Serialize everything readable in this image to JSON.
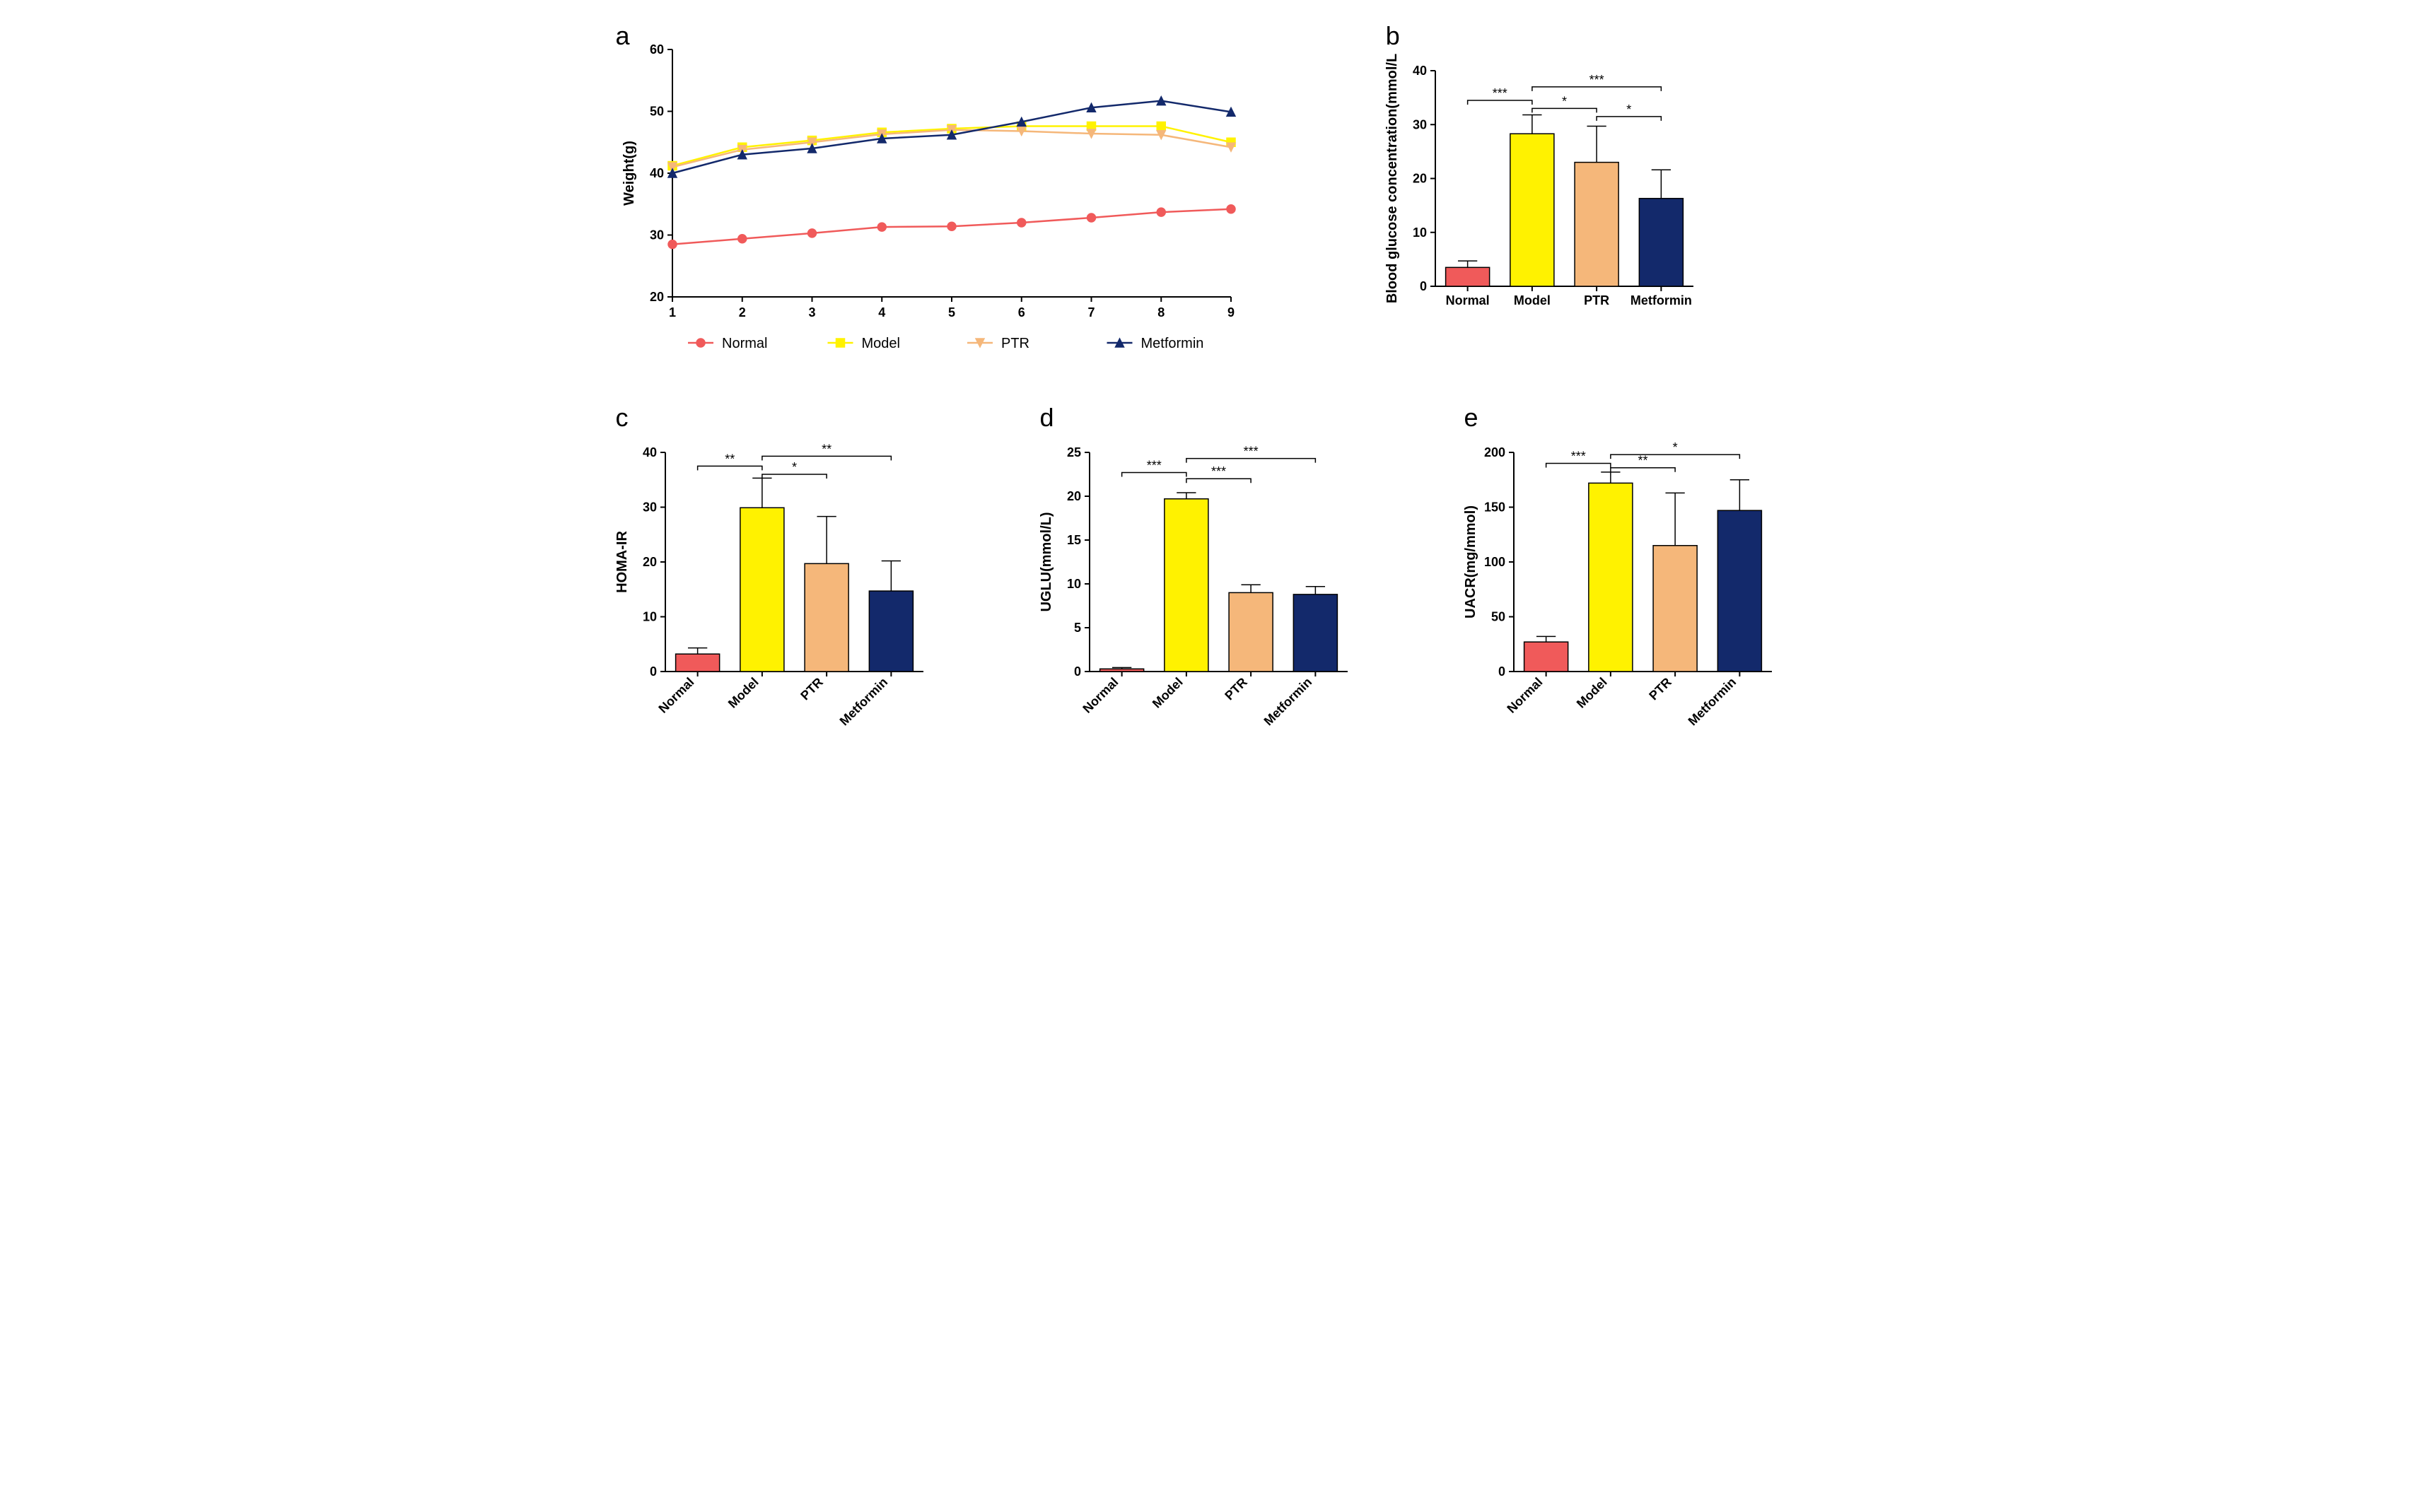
{
  "colors": {
    "normal": "#f05a5a",
    "model": "#fff200",
    "ptr": "#f5b77a",
    "metformin": "#13296b",
    "axis": "#000000",
    "bg": "#ffffff"
  },
  "panel_a": {
    "label": "a",
    "type": "line",
    "ylabel": "Weight(g)",
    "xlim": [
      1,
      9
    ],
    "xtick_step": 1,
    "ylim": [
      20,
      60
    ],
    "ytick_step": 10,
    "title_fontsize": 20,
    "tick_fontsize": 18,
    "marker_size": 6,
    "line_width": 2.5,
    "series": [
      {
        "name": "Normal",
        "color": "#f05a5a",
        "marker": "circle",
        "x": [
          1,
          2,
          3,
          4,
          5,
          6,
          7,
          8,
          9
        ],
        "y": [
          28.5,
          29.4,
          30.3,
          31.3,
          31.4,
          32.0,
          32.8,
          33.7,
          34.2
        ]
      },
      {
        "name": "Model",
        "color": "#fff200",
        "marker": "square",
        "x": [
          1,
          2,
          3,
          4,
          5,
          6,
          7,
          8,
          9
        ],
        "y": [
          41.2,
          44.2,
          45.3,
          46.6,
          47.2,
          47.6,
          47.6,
          47.6,
          45.0
        ]
      },
      {
        "name": "PTR",
        "color": "#f5b77a",
        "marker": "triangle-down",
        "x": [
          1,
          2,
          3,
          4,
          5,
          6,
          7,
          8,
          9
        ],
        "y": [
          41.0,
          43.8,
          45.0,
          46.3,
          47.0,
          46.8,
          46.4,
          46.2,
          44.2
        ]
      },
      {
        "name": "Metformin",
        "color": "#13296b",
        "marker": "triangle-up",
        "x": [
          1,
          2,
          3,
          4,
          5,
          6,
          7,
          8,
          9
        ],
        "y": [
          40.0,
          43.0,
          44.0,
          45.6,
          46.2,
          48.3,
          50.6,
          51.7,
          49.9
        ]
      }
    ],
    "legend": [
      "Normal",
      "Model",
      "PTR",
      "Metformin"
    ],
    "legend_position": "below"
  },
  "panel_b": {
    "label": "b",
    "type": "bar",
    "ylabel": "Blood glucose concentration(mmol/L",
    "ylim": [
      0,
      40
    ],
    "ytick_step": 10,
    "bar_width": 0.68,
    "categories": [
      "Normal",
      "Model",
      "PTR",
      "Metformin"
    ],
    "values": [
      3.5,
      28.3,
      23.0,
      16.3
    ],
    "errors": [
      1.2,
      3.5,
      6.7,
      5.3
    ],
    "bar_colors": [
      "#f05a5a",
      "#fff200",
      "#f5b77a",
      "#13296b"
    ],
    "xlabel_rotation": 0,
    "sig": [
      {
        "from": 0,
        "to": 1,
        "label": "***",
        "y": 34.5
      },
      {
        "from": 1,
        "to": 2,
        "label": "*",
        "y": 33.0
      },
      {
        "from": 1,
        "to": 3,
        "label": "***",
        "y": 37.0
      },
      {
        "from": 2,
        "to": 3,
        "label": "*",
        "y": 31.5
      }
    ]
  },
  "panel_c": {
    "label": "c",
    "type": "bar",
    "ylabel": "HOMA-IR",
    "ylim": [
      0,
      40
    ],
    "ytick_step": 10,
    "bar_width": 0.68,
    "categories": [
      "Normal",
      "Model",
      "PTR",
      "Metformin"
    ],
    "values": [
      3.2,
      29.9,
      19.7,
      14.7
    ],
    "errors": [
      1.1,
      5.4,
      8.6,
      5.5
    ],
    "bar_colors": [
      "#f05a5a",
      "#fff200",
      "#f5b77a",
      "#13296b"
    ],
    "xlabel_rotation": 45,
    "sig": [
      {
        "from": 0,
        "to": 1,
        "label": "**",
        "y": 37.5
      },
      {
        "from": 1,
        "to": 2,
        "label": "*",
        "y": 36.0
      },
      {
        "from": 1,
        "to": 3,
        "label": "**",
        "y": 39.3
      }
    ]
  },
  "panel_d": {
    "label": "d",
    "type": "bar",
    "ylabel": "UGLU(mmol/L)",
    "ylim": [
      0,
      25
    ],
    "ytick_step": 5,
    "bar_width": 0.68,
    "categories": [
      "Normal",
      "Model",
      "PTR",
      "Metformin"
    ],
    "values": [
      0.3,
      19.7,
      9.0,
      8.8
    ],
    "errors": [
      0.15,
      0.7,
      0.9,
      0.9
    ],
    "bar_colors": [
      "#f05a5a",
      "#fff200",
      "#f5b77a",
      "#13296b"
    ],
    "xlabel_rotation": 45,
    "sig": [
      {
        "from": 0,
        "to": 1,
        "label": "***",
        "y": 22.7
      },
      {
        "from": 1,
        "to": 2,
        "label": "***",
        "y": 22.0
      },
      {
        "from": 1,
        "to": 3,
        "label": "***",
        "y": 24.3
      }
    ]
  },
  "panel_e": {
    "label": "e",
    "type": "bar",
    "ylabel": "UACR(mg/mmol)",
    "ylim": [
      0,
      200
    ],
    "ytick_step": 50,
    "bar_width": 0.68,
    "categories": [
      "Normal",
      "Model",
      "PTR",
      "Metformin"
    ],
    "values": [
      27.0,
      172.0,
      115.0,
      147.0
    ],
    "errors": [
      5.0,
      10.0,
      48.0,
      28.0
    ],
    "bar_colors": [
      "#f05a5a",
      "#fff200",
      "#f5b77a",
      "#13296b"
    ],
    "xlabel_rotation": 45,
    "sig": [
      {
        "from": 0,
        "to": 1,
        "label": "***",
        "y": 190.0
      },
      {
        "from": 1,
        "to": 2,
        "label": "**",
        "y": 186.0
      },
      {
        "from": 1,
        "to": 3,
        "label": "*",
        "y": 198.0
      }
    ]
  }
}
